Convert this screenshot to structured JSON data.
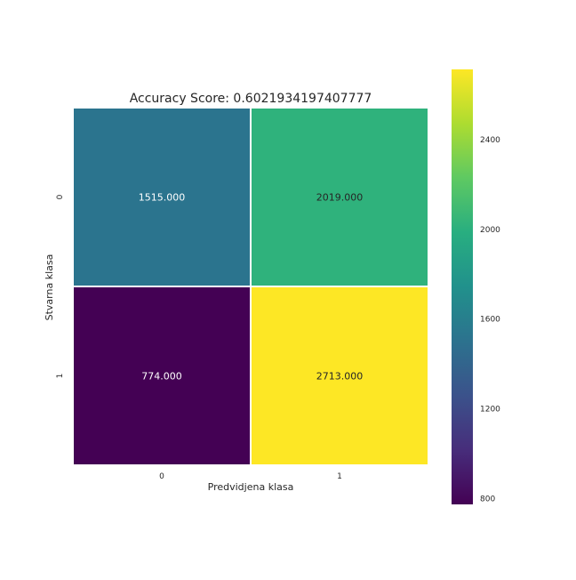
{
  "chart_data": {
    "type": "heatmap",
    "title": "Accuracy Score: 0.6021934197407777",
    "xlabel": "Predvidjena klasa",
    "ylabel": "Stvarna klasa",
    "x_categories": [
      "0",
      "1"
    ],
    "y_categories": [
      "0",
      "1"
    ],
    "values": [
      [
        1515.0,
        2019.0
      ],
      [
        774.0,
        2713.0
      ]
    ],
    "cell_labels": [
      [
        "1515.000",
        "2019.000"
      ],
      [
        "774.000",
        "2713.000"
      ]
    ],
    "colormap": "viridis",
    "vmin": 774.0,
    "vmax": 2713.0,
    "colorbar_ticks": [
      "800",
      "1200",
      "1600",
      "2000",
      "2400"
    ],
    "colorbar_tick_values": [
      800,
      1200,
      1600,
      2000,
      2400
    ]
  }
}
